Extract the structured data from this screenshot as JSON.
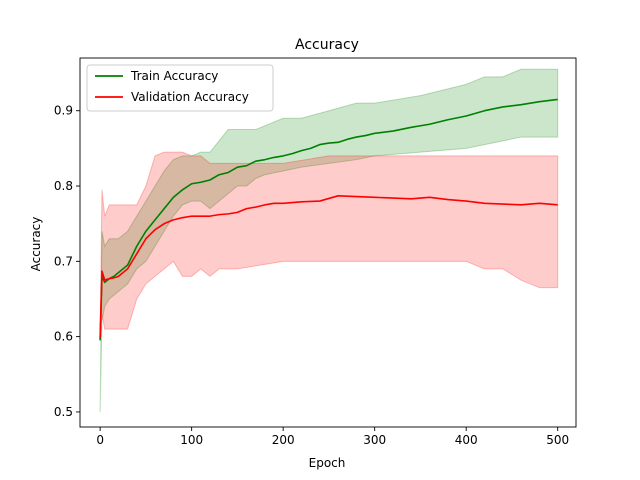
{
  "chart_data": {
    "type": "line",
    "title": "Accuracy",
    "xlabel": "Epoch",
    "ylabel": "Accuracy",
    "xlim": [
      -22,
      520
    ],
    "ylim": [
      0.48,
      0.97
    ],
    "xticks": [
      0,
      100,
      200,
      300,
      400,
      500
    ],
    "yticks": [
      0.5,
      0.6,
      0.7,
      0.8,
      0.9
    ],
    "grid": false,
    "legend_position": "top-left",
    "series": [
      {
        "name": "Train Accuracy",
        "color": "#008000",
        "x": [
          0,
          2,
          5,
          10,
          15,
          20,
          30,
          40,
          50,
          60,
          70,
          80,
          90,
          100,
          110,
          120,
          130,
          140,
          150,
          160,
          170,
          180,
          190,
          200,
          210,
          220,
          230,
          240,
          250,
          260,
          270,
          280,
          290,
          300,
          320,
          340,
          360,
          380,
          400,
          420,
          440,
          460,
          480,
          500
        ],
        "values": [
          0.595,
          0.68,
          0.672,
          0.677,
          0.68,
          0.685,
          0.695,
          0.72,
          0.74,
          0.755,
          0.77,
          0.785,
          0.795,
          0.803,
          0.805,
          0.808,
          0.815,
          0.818,
          0.825,
          0.827,
          0.833,
          0.835,
          0.838,
          0.84,
          0.843,
          0.847,
          0.85,
          0.855,
          0.857,
          0.858,
          0.862,
          0.865,
          0.867,
          0.87,
          0.873,
          0.878,
          0.882,
          0.888,
          0.893,
          0.9,
          0.905,
          0.908,
          0.912,
          0.915
        ]
      },
      {
        "name": "Validation Accuracy",
        "color": "#ff0000",
        "x": [
          0,
          2,
          5,
          10,
          15,
          20,
          30,
          40,
          50,
          60,
          70,
          80,
          90,
          100,
          110,
          120,
          130,
          140,
          150,
          160,
          170,
          180,
          190,
          200,
          220,
          240,
          260,
          280,
          300,
          320,
          340,
          360,
          380,
          400,
          420,
          440,
          460,
          480,
          500
        ],
        "values": [
          0.598,
          0.687,
          0.675,
          0.677,
          0.678,
          0.68,
          0.69,
          0.71,
          0.73,
          0.742,
          0.75,
          0.755,
          0.758,
          0.76,
          0.76,
          0.76,
          0.762,
          0.763,
          0.765,
          0.77,
          0.772,
          0.775,
          0.777,
          0.777,
          0.779,
          0.78,
          0.787,
          0.786,
          0.785,
          0.784,
          0.783,
          0.785,
          0.782,
          0.78,
          0.777,
          0.776,
          0.775,
          0.777,
          0.775
        ]
      }
    ],
    "bands": [
      {
        "series": "Train Accuracy",
        "color": "#008000",
        "opacity": 0.2,
        "x": [
          0,
          2,
          5,
          10,
          20,
          30,
          40,
          50,
          60,
          70,
          80,
          90,
          100,
          110,
          120,
          130,
          140,
          150,
          160,
          170,
          180,
          200,
          220,
          250,
          280,
          300,
          350,
          400,
          420,
          440,
          460,
          480,
          500
        ],
        "upper": [
          0.5,
          0.74,
          0.72,
          0.73,
          0.73,
          0.74,
          0.76,
          0.78,
          0.8,
          0.82,
          0.835,
          0.84,
          0.84,
          0.845,
          0.845,
          0.86,
          0.875,
          0.875,
          0.875,
          0.875,
          0.88,
          0.89,
          0.89,
          0.9,
          0.91,
          0.91,
          0.92,
          0.935,
          0.945,
          0.945,
          0.955,
          0.955,
          0.955
        ],
        "lower": [
          0.5,
          0.62,
          0.64,
          0.65,
          0.66,
          0.67,
          0.69,
          0.7,
          0.72,
          0.74,
          0.76,
          0.775,
          0.78,
          0.78,
          0.77,
          0.78,
          0.79,
          0.8,
          0.8,
          0.81,
          0.815,
          0.82,
          0.825,
          0.83,
          0.835,
          0.84,
          0.845,
          0.85,
          0.855,
          0.86,
          0.865,
          0.865,
          0.865
        ]
      },
      {
        "series": "Validation Accuracy",
        "color": "#ff0000",
        "opacity": 0.2,
        "x": [
          0,
          2,
          5,
          10,
          20,
          30,
          40,
          50,
          60,
          70,
          80,
          90,
          100,
          110,
          120,
          130,
          140,
          150,
          200,
          250,
          300,
          350,
          360,
          400,
          420,
          440,
          460,
          480,
          500
        ],
        "upper": [
          0.6,
          0.795,
          0.76,
          0.775,
          0.775,
          0.775,
          0.775,
          0.8,
          0.84,
          0.845,
          0.845,
          0.845,
          0.84,
          0.84,
          0.83,
          0.83,
          0.83,
          0.83,
          0.83,
          0.84,
          0.84,
          0.84,
          0.84,
          0.84,
          0.84,
          0.84,
          0.84,
          0.84,
          0.84
        ],
        "lower": [
          0.6,
          0.63,
          0.61,
          0.61,
          0.61,
          0.61,
          0.65,
          0.67,
          0.68,
          0.69,
          0.7,
          0.68,
          0.68,
          0.69,
          0.68,
          0.69,
          0.69,
          0.69,
          0.7,
          0.7,
          0.7,
          0.7,
          0.7,
          0.7,
          0.69,
          0.69,
          0.675,
          0.665,
          0.665
        ]
      }
    ]
  }
}
